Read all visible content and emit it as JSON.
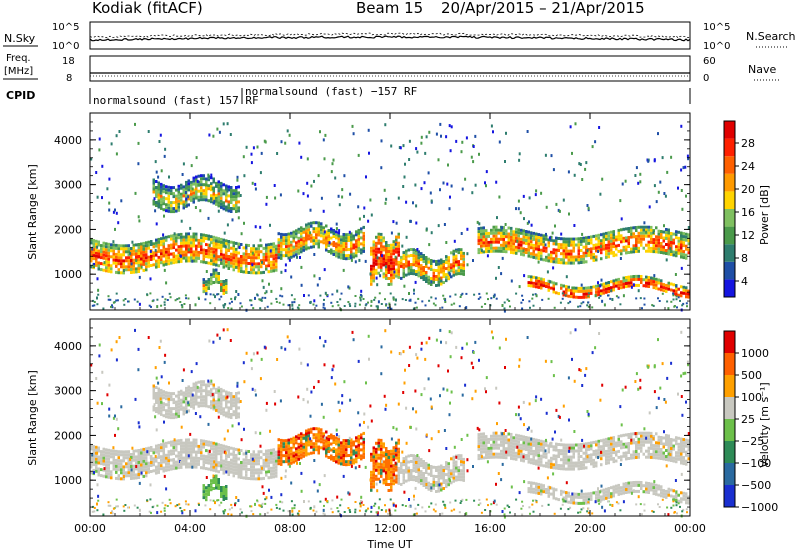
{
  "header": {
    "station": "Kodiak (fitACF)",
    "beam": "Beam 15",
    "date_range": "20/Apr/2015 – 21/Apr/2015"
  },
  "top_panels": {
    "nsky_label": "N.Sky",
    "nsky_ticks": [
      "10^5",
      "10^0"
    ],
    "nsearch_label": "N.Search",
    "nsearch_ticks": [
      "10^5",
      "10^0"
    ],
    "freq_label_1": "Freq.",
    "freq_label_2": "[MHz]",
    "freq_ticks": [
      "18",
      "8"
    ],
    "nave_label": "Nave",
    "nave_ticks": [
      "60",
      "0"
    ],
    "cpid_label": "CPID",
    "cpid_1": "normalsound (fast) 157 RF",
    "cpid_2": "normalsound (fast) −157 RF"
  },
  "chart_data": [
    {
      "type": "heatmap",
      "title": "",
      "ylabel": "Slant Range [km]",
      "xlabel": "",
      "ylim": [
        200,
        4600
      ],
      "yticks": [
        "4000",
        "3000",
        "2000",
        "1000"
      ],
      "xlim_hours": [
        0,
        24
      ],
      "colorbar": {
        "label": "Power [dB]",
        "ticks": [
          "28",
          "24",
          "20",
          "16",
          "12",
          "8",
          "4"
        ],
        "colors": [
          "#1515e0",
          "#1f4fa6",
          "#2e7d6e",
          "#4a9a4a",
          "#7fc060",
          "#ffd400",
          "#ff9a00",
          "#ff6000",
          "#ff2000",
          "#e00000"
        ]
      },
      "bands": [
        {
          "t0": 0.0,
          "t1": 7.5,
          "r0": 1150,
          "r1": 1800,
          "level": 0.55
        },
        {
          "t0": 7.5,
          "t1": 11.0,
          "r0": 1500,
          "r1": 2050,
          "level": 0.4
        },
        {
          "t0": 11.2,
          "t1": 12.3,
          "r0": 900,
          "r1": 1800,
          "level": 0.75
        },
        {
          "t0": 12.3,
          "t1": 15.0,
          "r0": 900,
          "r1": 1450,
          "level": 0.45
        },
        {
          "t0": 15.5,
          "t1": 24.0,
          "r0": 1350,
          "r1": 1950,
          "level": 0.5
        },
        {
          "t0": 17.5,
          "t1": 24.0,
          "r0": 600,
          "r1": 850,
          "level": 0.7
        },
        {
          "t0": 2.5,
          "t1": 6.0,
          "r0": 2500,
          "r1": 3100,
          "level": 0.2
        },
        {
          "t0": 4.5,
          "t1": 5.5,
          "r0": 700,
          "r1": 1000,
          "level": 0.3
        }
      ]
    },
    {
      "type": "heatmap",
      "title": "",
      "ylabel": "Slant Range [km]",
      "xlabel": "Time UT",
      "ylim": [
        200,
        4600
      ],
      "yticks": [
        "4000",
        "3000",
        "2000",
        "1000"
      ],
      "xlim_hours": [
        0,
        24
      ],
      "xticks": [
        "00:00",
        "04:00",
        "08:00",
        "12:00",
        "16:00",
        "20:00",
        "00:00"
      ],
      "colorbar": {
        "label": "Velocity [m s⁻¹]",
        "ticks": [
          "1000",
          "500",
          "100",
          "25",
          "−25",
          "−100",
          "−500",
          "−1000"
        ],
        "colors": [
          "#1a2fd0",
          "#2a6aa0",
          "#2e8b57",
          "#6cc04a",
          "#c8c8c0",
          "#ffa000",
          "#ff6000",
          "#e00000"
        ]
      },
      "bands": [
        {
          "t0": 0.0,
          "t1": 7.5,
          "r0": 1150,
          "r1": 1800,
          "kind": "gray"
        },
        {
          "t0": 7.5,
          "t1": 11.0,
          "r0": 1500,
          "r1": 2050,
          "kind": "orange"
        },
        {
          "t0": 11.2,
          "t1": 12.3,
          "r0": 900,
          "r1": 1800,
          "kind": "orange"
        },
        {
          "t0": 12.3,
          "t1": 15.0,
          "r0": 900,
          "r1": 1450,
          "kind": "gray"
        },
        {
          "t0": 15.5,
          "t1": 24.0,
          "r0": 1350,
          "r1": 1950,
          "kind": "gray"
        },
        {
          "t0": 17.5,
          "t1": 24.0,
          "r0": 600,
          "r1": 850,
          "kind": "gray"
        },
        {
          "t0": 2.5,
          "t1": 6.0,
          "r0": 2500,
          "r1": 3100,
          "kind": "gray"
        },
        {
          "t0": 4.5,
          "t1": 5.5,
          "r0": 700,
          "r1": 1000,
          "kind": "green"
        }
      ]
    }
  ]
}
